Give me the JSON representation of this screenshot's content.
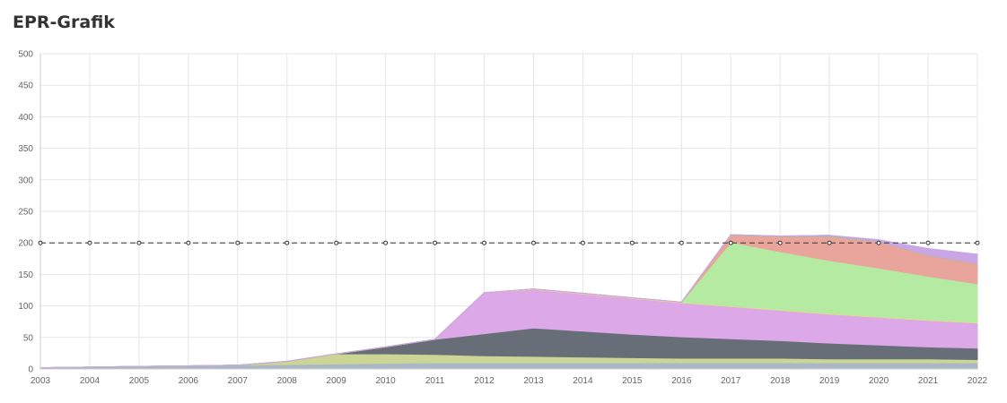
{
  "page": {
    "title": "EPR-Grafik"
  },
  "chart_data": {
    "type": "area",
    "stacked": true,
    "x": [
      "2003",
      "2004",
      "2005",
      "2006",
      "2007",
      "2008",
      "2009",
      "2010",
      "2011",
      "2012",
      "2013",
      "2014",
      "2015",
      "2016",
      "2017",
      "2018",
      "2019",
      "2020",
      "2021",
      "2022"
    ],
    "ylim": [
      0,
      500
    ],
    "yticks": [
      0,
      50,
      100,
      150,
      200,
      250,
      300,
      350,
      400,
      450,
      500
    ],
    "grid": true,
    "series": [
      {
        "color": "#aab8c6",
        "values": [
          2,
          3,
          4,
          5,
          6,
          7,
          8,
          9,
          10,
          10,
          10,
          10,
          10,
          10,
          10,
          10,
          10,
          10,
          10,
          10
        ]
      },
      {
        "color": "#cad596",
        "values": [
          0,
          0,
          0,
          0,
          0,
          5,
          16,
          15,
          13,
          11,
          10,
          9,
          8,
          7,
          7,
          7,
          6,
          6,
          6,
          5
        ]
      },
      {
        "color": "#676e77",
        "values": [
          0,
          0,
          0,
          0,
          0,
          0,
          0,
          11,
          24,
          35,
          45,
          41,
          37,
          34,
          31,
          28,
          25,
          22,
          19,
          18
        ]
      },
      {
        "color": "#dca8e8",
        "values": [
          0,
          0,
          0,
          0,
          0,
          0,
          0,
          0,
          0,
          65,
          61,
          59,
          57,
          54,
          51,
          48,
          46,
          44,
          42,
          40
        ]
      },
      {
        "color": "#f2d97a",
        "values": [
          0,
          0,
          0,
          0,
          0,
          0,
          0,
          0,
          0,
          0,
          1,
          1,
          1,
          1,
          1,
          1,
          1,
          1,
          1,
          1
        ]
      },
      {
        "color": "#b4eaa2",
        "values": [
          0,
          0,
          0,
          0,
          0,
          0,
          0,
          0,
          0,
          0,
          0,
          0,
          0,
          0,
          101,
          92,
          84,
          77,
          69,
          61
        ]
      },
      {
        "color": "#e9a59c",
        "values": [
          0,
          0,
          0,
          0,
          0,
          0,
          0,
          0,
          0,
          0,
          0,
          0,
          0,
          0,
          11,
          24,
          38,
          42,
          33,
          32
        ]
      },
      {
        "color": "#aab8b0",
        "values": [
          0,
          0,
          0,
          0,
          0,
          0,
          0,
          0,
          0,
          0,
          0,
          0,
          0,
          0,
          1,
          1,
          2,
          1,
          1,
          1
        ]
      },
      {
        "color": "#cba6e6",
        "values": [
          0,
          0,
          0,
          0,
          0,
          0,
          0,
          0,
          0,
          0,
          0,
          0,
          0,
          0,
          0,
          0,
          0,
          2,
          10,
          14
        ]
      }
    ],
    "reference_line": {
      "value": 200,
      "style": "dashed",
      "color": "#333333"
    }
  }
}
